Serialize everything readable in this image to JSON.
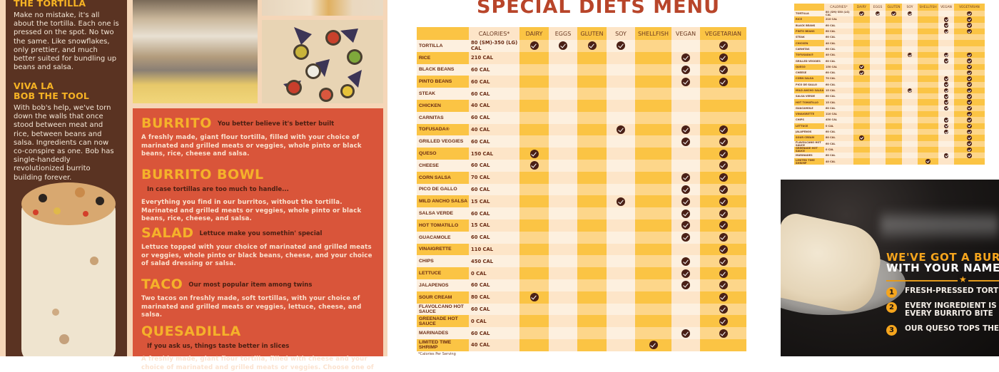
{
  "left_menu": {
    "sidebar": {
      "section1_title": "THE TORTILLA",
      "section1_text": "Make no mistake, it's all about the tortilla. Each one is pressed on the spot. No two the same. Like snowflakes, only prettier, and much better suited for bundling up beans and salsa.",
      "section2_title_line1": "VIVA LA",
      "section2_title_line2": "BOB THE TOOL",
      "section2_text": "With bob's help, we've torn down the walls that once stood between meat and rice, between beans and salsa. Ingredients can now co-conspire as one. Bob has single-handedly revolutionized burrito building forever."
    },
    "items": [
      {
        "name": "BURRITO",
        "tagline": "You better believe it's better built",
        "description": "A freshly made, giant flour tortilla, filled with your choice of marinated and grilled meats or veggies, whole pinto or black beans, rice, cheese and salsa."
      },
      {
        "name": "BURRITO BOWL",
        "tagline": "In case tortillas are too much to handle...",
        "description": "Everything you find in our burritos, without the tortilla. Marinated and grilled meats or veggies, whole pinto or black beans, rice, cheese, and salsa."
      },
      {
        "name": "SALAD",
        "tagline": "Lettuce make you somethin' special",
        "description": "Lettuce topped with your choice of marinated and grilled meats or veggies, whole pinto or black beans, cheese, and your choice of salad dressing or salsa."
      },
      {
        "name": "TACO",
        "tagline": "Our most popular item among twins",
        "description": "Two tacos on freshly made, soft tortillas, with your choice of marinated and grilled meats or veggies, lettuce, cheese, and salsa."
      },
      {
        "name": "QUESADILLA",
        "tagline": "If you ask us, things taste better in slices",
        "description": "A freshly made, giant flour tortilla, filled with cheese and your choice of marinated and grilled meats or veggies. Choose one of"
      }
    ]
  },
  "special_diets": {
    "title": "SPECIAL DIETS MENU",
    "columns": [
      "",
      "CALORIES*",
      "DAIRY",
      "EGGS",
      "GLUTEN",
      "SOY",
      "SHELLFISH",
      "VEGAN",
      "VEGETARIAN"
    ],
    "rows": [
      {
        "item": "TORTILLA",
        "calories": "80 (SM)-350 (LG) CAL",
        "checks": [
          1,
          1,
          1,
          1,
          0,
          0,
          1
        ]
      },
      {
        "item": "RICE",
        "calories": "210 CAL",
        "checks": [
          0,
          0,
          0,
          0,
          0,
          1,
          1
        ]
      },
      {
        "item": "BLACK BEANS",
        "calories": "60 CAL",
        "checks": [
          0,
          0,
          0,
          0,
          0,
          1,
          1
        ]
      },
      {
        "item": "PINTO BEANS",
        "calories": "60 CAL",
        "checks": [
          0,
          0,
          0,
          0,
          0,
          1,
          1
        ]
      },
      {
        "item": "STEAK",
        "calories": "60 CAL",
        "checks": [
          0,
          0,
          0,
          0,
          0,
          0,
          0
        ]
      },
      {
        "item": "CHICKEN",
        "calories": "40 CAL",
        "checks": [
          0,
          0,
          0,
          0,
          0,
          0,
          0
        ]
      },
      {
        "item": "CARNITAS",
        "calories": "60 CAL",
        "checks": [
          0,
          0,
          0,
          0,
          0,
          0,
          0
        ]
      },
      {
        "item": "TOFUSADA®",
        "calories": "40 CAL",
        "checks": [
          0,
          0,
          0,
          1,
          0,
          1,
          1
        ]
      },
      {
        "item": "GRILLED VEGGIES",
        "calories": "60 CAL",
        "checks": [
          0,
          0,
          0,
          0,
          0,
          1,
          1
        ]
      },
      {
        "item": "QUESO",
        "calories": "150 CAL",
        "checks": [
          1,
          0,
          0,
          0,
          0,
          0,
          1
        ]
      },
      {
        "item": "CHEESE",
        "calories": "60 CAL",
        "checks": [
          1,
          0,
          0,
          0,
          0,
          0,
          1
        ]
      },
      {
        "item": "CORN SALSA",
        "calories": "70 CAL",
        "checks": [
          0,
          0,
          0,
          0,
          0,
          1,
          1
        ]
      },
      {
        "item": "PICO DE GALLO",
        "calories": "60 CAL",
        "checks": [
          0,
          0,
          0,
          0,
          0,
          1,
          1
        ]
      },
      {
        "item": "MILD ANCHO SALSA",
        "calories": "15 CAL",
        "checks": [
          0,
          0,
          0,
          1,
          0,
          1,
          1
        ]
      },
      {
        "item": "SALSA VERDE",
        "calories": "60 CAL",
        "checks": [
          0,
          0,
          0,
          0,
          0,
          1,
          1
        ]
      },
      {
        "item": "HOT TOMATILLO",
        "calories": "15 CAL",
        "checks": [
          0,
          0,
          0,
          0,
          0,
          1,
          1
        ]
      },
      {
        "item": "GUACAMOLE",
        "calories": "60 CAL",
        "checks": [
          0,
          0,
          0,
          0,
          0,
          1,
          1
        ]
      },
      {
        "item": "VINAIGRETTE",
        "calories": "110 CAL",
        "checks": [
          0,
          0,
          0,
          0,
          0,
          0,
          1
        ]
      },
      {
        "item": "CHIPS",
        "calories": "450 CAL",
        "checks": [
          0,
          0,
          0,
          0,
          0,
          1,
          1
        ]
      },
      {
        "item": "LETTUCE",
        "calories": "0 CAL",
        "checks": [
          0,
          0,
          0,
          0,
          0,
          1,
          1
        ]
      },
      {
        "item": "JALAPENOS",
        "calories": "60 CAL",
        "checks": [
          0,
          0,
          0,
          0,
          0,
          1,
          1
        ]
      },
      {
        "item": "SOUR CREAM",
        "calories": "80 CAL",
        "checks": [
          1,
          0,
          0,
          0,
          0,
          0,
          1
        ]
      },
      {
        "item": "FLAVOLCANO HOT SAUCE",
        "calories": "60 CAL",
        "checks": [
          0,
          0,
          0,
          0,
          0,
          0,
          1
        ]
      },
      {
        "item": "GREENADE HOT SAUCE",
        "calories": "0 CAL",
        "checks": [
          0,
          0,
          0,
          0,
          0,
          0,
          1
        ]
      },
      {
        "item": "MARINADES",
        "calories": "60 CAL",
        "checks": [
          0,
          0,
          0,
          0,
          0,
          1,
          1
        ]
      },
      {
        "item": "LIMITED TIME SHRIMP",
        "calories": "40 CAL",
        "checks": [
          0,
          0,
          0,
          0,
          1,
          0,
          0
        ]
      }
    ],
    "footnote": "*Calories Per Serving"
  },
  "ad": {
    "headline_line1": "WE'VE GOT A BUR",
    "headline_line2": "WITH YOUR NAME",
    "star": "★",
    "points": [
      {
        "num": "1",
        "text": "FRESH-PRESSED TORTILLA"
      },
      {
        "num": "2",
        "text": "EVERY INGREDIENT IS MI",
        "text2": "EVERY BURRITO BITE"
      },
      {
        "num": "3",
        "text": "OUR QUESO TOPS THEM"
      }
    ]
  },
  "colors": {
    "brown": "#5a3322",
    "orange_panel": "#d9553a",
    "gold": "#f5b12a",
    "title_red": "#b8452a",
    "cell_dark": "#fbc444",
    "cell_light": "#fde5c8",
    "check": "#4a2016"
  }
}
